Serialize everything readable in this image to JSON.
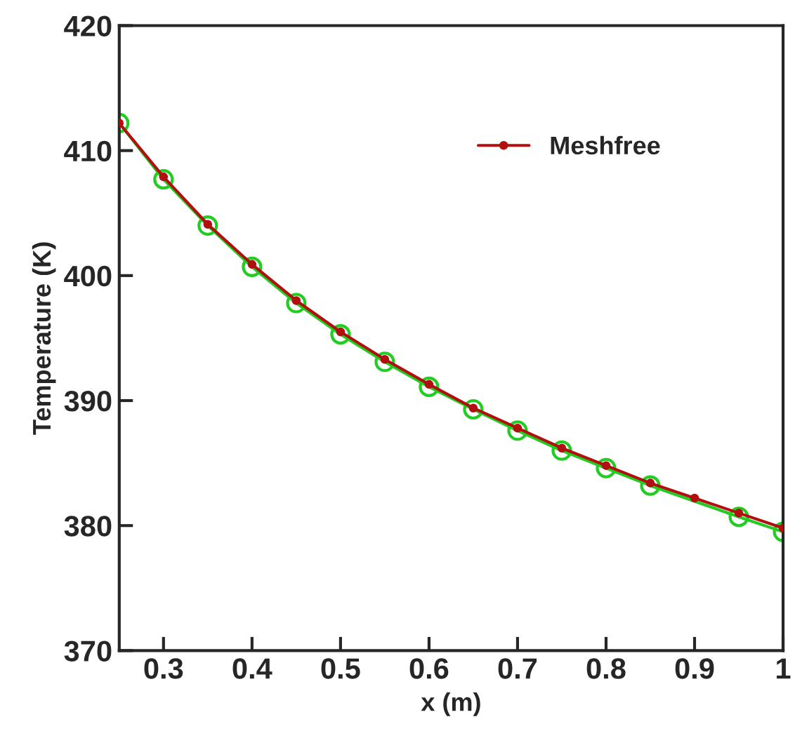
{
  "chart_data": {
    "type": "line",
    "xlabel": "x (m)",
    "ylabel": "Temperature (K)",
    "xlim": [
      0.25,
      1
    ],
    "xticks": [
      0.3,
      0.4,
      0.5,
      0.6,
      0.7,
      0.8,
      0.9,
      {
        "value": 1,
        "label": "1"
      }
    ],
    "ylim": [
      370,
      420
    ],
    "yticks": [
      370,
      380,
      390,
      400,
      410,
      420
    ],
    "grid": false,
    "legend": "top right",
    "series": [
      {
        "name": "Meshfree",
        "color": "#b01010",
        "marker": "circle",
        "x": [
          0.25,
          0.3,
          0.35,
          0.4,
          0.45,
          0.5,
          0.55,
          0.6,
          0.65,
          0.7,
          0.75,
          0.8,
          0.85,
          0.9,
          0.95,
          1.0
        ],
        "values": [
          412.2,
          407.9,
          404.1,
          400.9,
          398.0,
          395.5,
          393.3,
          391.3,
          389.4,
          387.8,
          386.2,
          384.8,
          383.4,
          382.2,
          381.0,
          379.8
        ]
      },
      {
        "color": "#22cc22",
        "marker": "circle",
        "x": [
          0.25,
          0.3,
          0.35,
          0.4,
          0.45,
          0.5,
          0.55,
          0.6,
          0.65,
          0.7,
          0.75,
          0.8,
          0.85,
          0.95,
          1.0
        ],
        "values": [
          412.2,
          407.7,
          404.0,
          400.7,
          397.8,
          395.3,
          393.1,
          391.1,
          389.3,
          387.6,
          386.0,
          384.6,
          383.2,
          380.7,
          379.5
        ]
      }
    ]
  }
}
